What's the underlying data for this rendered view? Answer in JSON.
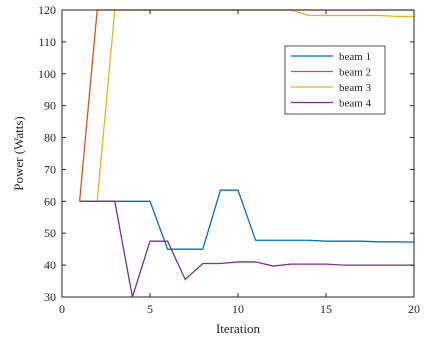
{
  "chart_data": {
    "type": "line",
    "xlabel": "Iteration",
    "ylabel": "Power (Watts)",
    "xlim": [
      0,
      20
    ],
    "ylim": [
      30,
      120
    ],
    "xticks": [
      0,
      5,
      10,
      15,
      20
    ],
    "yticks": [
      30,
      40,
      50,
      60,
      70,
      80,
      90,
      100,
      110,
      120
    ],
    "grid": false,
    "legend_position": "top-right",
    "series": [
      {
        "name": "beam 1",
        "color": "#0072BD",
        "x": [
          1,
          2,
          3,
          4,
          5,
          6,
          7,
          8,
          9,
          10,
          11,
          12,
          13,
          14,
          15,
          16,
          17,
          18,
          19,
          20
        ],
        "y": [
          60,
          60,
          60,
          60,
          60,
          45,
          45,
          45,
          63.5,
          63.5,
          47.8,
          47.8,
          47.8,
          47.8,
          47.5,
          47.5,
          47.5,
          47.3,
          47.3,
          47.2
        ]
      },
      {
        "name": "beam 2",
        "color": "#D95319",
        "x": [
          1,
          2,
          3,
          4,
          5,
          6,
          7,
          8,
          9,
          10,
          11,
          12,
          13,
          14,
          15,
          16,
          17,
          18,
          19,
          20
        ],
        "y": [
          60,
          120,
          120,
          120,
          120,
          120,
          120,
          120,
          120,
          120,
          120,
          120,
          120,
          120,
          120,
          120,
          120,
          120,
          120,
          120
        ]
      },
      {
        "name": "beam 3",
        "color": "#EDB120",
        "x": [
          1,
          2,
          3,
          4,
          5,
          6,
          7,
          8,
          9,
          10,
          11,
          12,
          13,
          14,
          15,
          16,
          17,
          18,
          19,
          20
        ],
        "y": [
          60,
          60,
          120,
          120,
          120,
          120,
          120,
          120,
          120,
          120,
          120,
          120,
          120,
          118.3,
          118.3,
          118.3,
          118.3,
          118.3,
          118,
          118
        ]
      },
      {
        "name": "beam 4",
        "color": "#7E2F8E",
        "x": [
          1,
          2,
          3,
          4,
          5,
          6,
          7,
          8,
          9,
          10,
          11,
          12,
          13,
          14,
          15,
          16,
          17,
          18,
          19,
          20
        ],
        "y": [
          60,
          60,
          60,
          30,
          47.5,
          47.5,
          35.5,
          40.5,
          40.5,
          41,
          41,
          39.7,
          40.3,
          40.3,
          40.3,
          40,
          40,
          40,
          40,
          40
        ]
      }
    ]
  }
}
